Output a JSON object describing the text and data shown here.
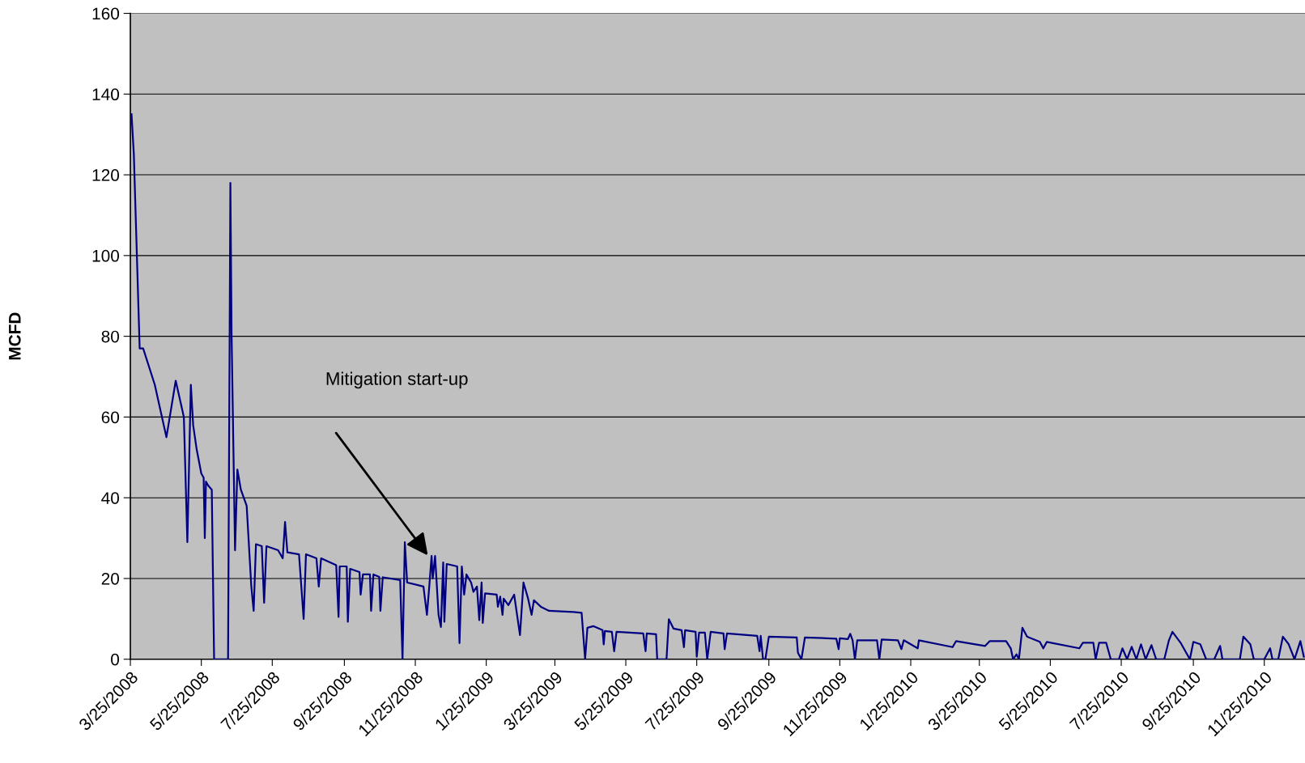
{
  "chart_data": {
    "type": "line",
    "ylabel": "MCFD",
    "x": [
      "2008-03-26",
      "2008-03-28",
      "2008-04-02",
      "2008-04-05",
      "2008-04-15",
      "2008-04-25",
      "2008-05-03",
      "2008-05-10",
      "2008-05-13",
      "2008-05-16",
      "2008-05-18",
      "2008-05-21",
      "2008-05-25",
      "2008-05-27",
      "2008-05-28",
      "2008-05-29",
      "2008-05-31",
      "2008-06-03",
      "2008-06-05",
      "2008-06-17",
      "2008-06-19",
      "2008-06-20",
      "2008-06-23",
      "2008-06-25",
      "2008-06-28",
      "2008-07-03",
      "2008-07-07",
      "2008-07-09",
      "2008-07-11",
      "2008-07-16",
      "2008-07-18",
      "2008-07-20",
      "2008-07-30",
      "2008-08-03",
      "2008-08-05",
      "2008-08-07",
      "2008-08-17",
      "2008-08-21",
      "2008-08-23",
      "2008-09-01",
      "2008-09-03",
      "2008-09-05",
      "2008-09-18",
      "2008-09-20",
      "2008-09-21",
      "2008-09-27",
      "2008-09-28",
      "2008-09-30",
      "2008-10-08",
      "2008-10-09",
      "2008-10-11",
      "2008-10-17",
      "2008-10-18",
      "2008-10-20",
      "2008-10-25",
      "2008-10-26",
      "2008-10-28",
      "2008-11-12",
      "2008-11-14",
      "2008-11-16",
      "2008-11-18",
      "2008-12-02",
      "2008-12-05",
      "2008-12-07",
      "2008-12-09",
      "2008-12-10",
      "2008-12-12",
      "2008-12-15",
      "2008-12-17",
      "2008-12-19",
      "2008-12-20",
      "2008-12-22",
      "2008-12-31",
      "2009-01-02",
      "2009-01-04",
      "2009-01-06",
      "2009-01-08",
      "2009-01-12",
      "2009-01-14",
      "2009-01-17",
      "2009-01-19",
      "2009-01-21",
      "2009-01-22",
      "2009-01-24",
      "2009-02-03",
      "2009-02-04",
      "2009-02-06",
      "2009-02-08",
      "2009-02-09",
      "2009-02-13",
      "2009-02-18",
      "2009-02-23",
      "2009-02-26",
      "2009-03-02",
      "2009-03-05",
      "2009-03-07",
      "2009-03-13",
      "2009-03-20",
      "2009-04-10",
      "2009-04-17",
      "2009-04-20",
      "2009-04-22",
      "2009-04-27",
      "2009-05-05",
      "2009-05-06",
      "2009-05-07",
      "2009-05-13",
      "2009-05-15",
      "2009-05-17",
      "2009-06-09",
      "2009-06-11",
      "2009-06-12",
      "2009-06-20",
      "2009-06-21",
      "2009-06-29",
      "2009-07-01",
      "2009-07-05",
      "2009-07-12",
      "2009-07-14",
      "2009-07-15",
      "2009-07-24",
      "2009-07-25",
      "2009-07-27",
      "2009-08-01",
      "2009-08-03",
      "2009-08-06",
      "2009-08-17",
      "2009-08-18",
      "2009-08-20",
      "2009-09-15",
      "2009-09-17",
      "2009-09-18",
      "2009-09-20",
      "2009-09-22",
      "2009-09-25",
      "2009-10-19",
      "2009-10-20",
      "2009-10-23",
      "2009-10-26",
      "2009-11-22",
      "2009-11-24",
      "2009-11-25",
      "2009-12-02",
      "2009-12-04",
      "2009-12-06",
      "2009-12-08",
      "2009-12-10",
      "2009-12-27",
      "2009-12-29",
      "2009-12-31",
      "2010-01-14",
      "2010-01-17",
      "2010-01-19",
      "2010-01-31",
      "2010-02-01",
      "2010-03-02",
      "2010-03-05",
      "2010-03-30",
      "2010-04-03",
      "2010-04-17",
      "2010-04-21",
      "2010-04-23",
      "2010-04-26",
      "2010-04-28",
      "2010-05-01",
      "2010-05-05",
      "2010-05-16",
      "2010-05-19",
      "2010-05-22",
      "2010-06-19",
      "2010-06-22",
      "2010-07-01",
      "2010-07-03",
      "2010-07-06",
      "2010-07-12",
      "2010-07-16",
      "2010-07-23",
      "2010-07-26",
      "2010-07-30",
      "2010-08-03",
      "2010-08-07",
      "2010-08-11",
      "2010-08-15",
      "2010-08-20",
      "2010-08-24",
      "2010-08-31",
      "2010-09-04",
      "2010-09-07",
      "2010-09-14",
      "2010-09-22",
      "2010-09-25",
      "2010-10-01",
      "2010-10-06",
      "2010-10-13",
      "2010-10-18",
      "2010-10-20",
      "2010-11-04",
      "2010-11-07",
      "2010-11-13",
      "2010-11-16",
      "2010-11-25",
      "2010-11-30",
      "2010-12-02",
      "2010-12-07",
      "2010-12-11",
      "2010-12-16",
      "2010-12-21",
      "2010-12-26",
      "2010-12-29"
    ],
    "series": [
      {
        "color": "#000080",
        "values": [
          135,
          125,
          77,
          77,
          68,
          55,
          69,
          60,
          29,
          68,
          58,
          52,
          46,
          45,
          30,
          44,
          43,
          42,
          0,
          0,
          118,
          81,
          27,
          47,
          42,
          38,
          18,
          12,
          28.5,
          28,
          14,
          28,
          27,
          25,
          34,
          26.5,
          26,
          10,
          26,
          25,
          18,
          25,
          23.3,
          10.5,
          23,
          23,
          9.3,
          22.4,
          21.6,
          16,
          21,
          21,
          12,
          21,
          20.4,
          12,
          20.3,
          19.6,
          0,
          29,
          19,
          18,
          11,
          18,
          25.6,
          20,
          25.6,
          11,
          8,
          24,
          9.3,
          23.6,
          23,
          4,
          23,
          16,
          21,
          19,
          16.7,
          18,
          9.7,
          19,
          9,
          16.3,
          16,
          13,
          15.5,
          11,
          15,
          13.4,
          16,
          6,
          19,
          15,
          11,
          14.6,
          13,
          12,
          11.7,
          11.5,
          0,
          7.8,
          8.2,
          7.2,
          3.7,
          7,
          6.8,
          2,
          6.8,
          6.4,
          2,
          6.4,
          6.2,
          0,
          0,
          9.9,
          7.6,
          7.2,
          3,
          7.2,
          6.8,
          0.6,
          6.6,
          6.6,
          0,
          6.8,
          6.4,
          2.5,
          6.4,
          5.8,
          2,
          5.8,
          0,
          0,
          5.6,
          5.4,
          1.6,
          0,
          5.4,
          5.1,
          2.5,
          5.2,
          5,
          6.3,
          4.7,
          0,
          4.7,
          4.7,
          0,
          4.9,
          4.7,
          2.5,
          4.7,
          2.7,
          4.7,
          3,
          4.5,
          3.3,
          4.5,
          4.5,
          2.7,
          0,
          1.2,
          0,
          7.8,
          5.6,
          4.3,
          2.7,
          4.3,
          2.7,
          4.1,
          4.1,
          0,
          4.1,
          4.1,
          0,
          0,
          2.7,
          0,
          3.1,
          0,
          3.7,
          0,
          3.5,
          0,
          0,
          4.7,
          6.8,
          4.1,
          0,
          4.3,
          3.7,
          0,
          0,
          3.3,
          0,
          0,
          5.6,
          3.7,
          0,
          0,
          2.7,
          0,
          0,
          5.6,
          3.7,
          0,
          4.5,
          0.6
        ]
      }
    ],
    "xlim": [
      "2008-03-25",
      "2010-12-30"
    ],
    "xticks": [
      {
        "value": "2008-03-25",
        "label": "3/25/2008"
      },
      {
        "value": "2008-05-25",
        "label": "5/25/2008"
      },
      {
        "value": "2008-07-25",
        "label": "7/25/2008"
      },
      {
        "value": "2008-09-25",
        "label": "9/25/2008"
      },
      {
        "value": "2008-11-25",
        "label": "11/25/2008"
      },
      {
        "value": "2009-01-25",
        "label": "1/25/2009"
      },
      {
        "value": "2009-03-25",
        "label": "3/25/2009"
      },
      {
        "value": "2009-05-25",
        "label": "5/25/2009"
      },
      {
        "value": "2009-07-25",
        "label": "7/25/2009"
      },
      {
        "value": "2009-09-25",
        "label": "9/25/2009"
      },
      {
        "value": "2009-11-25",
        "label": "11/25/2009"
      },
      {
        "value": "2010-01-25",
        "label": "1/25/2010"
      },
      {
        "value": "2010-03-25",
        "label": "3/25/2010"
      },
      {
        "value": "2010-05-25",
        "label": "5/25/2010"
      },
      {
        "value": "2010-07-25",
        "label": "7/25/2010"
      },
      {
        "value": "2010-09-25",
        "label": "9/25/2010"
      },
      {
        "value": "2010-11-25",
        "label": "11/25/2010"
      }
    ],
    "ylim": [
      0,
      160
    ],
    "yticks": [
      0,
      20,
      40,
      60,
      80,
      100,
      120,
      140,
      160
    ],
    "grid": "y",
    "marker": "none",
    "line_style": "solid",
    "annotations": [
      "Mitigation start-up"
    ]
  }
}
